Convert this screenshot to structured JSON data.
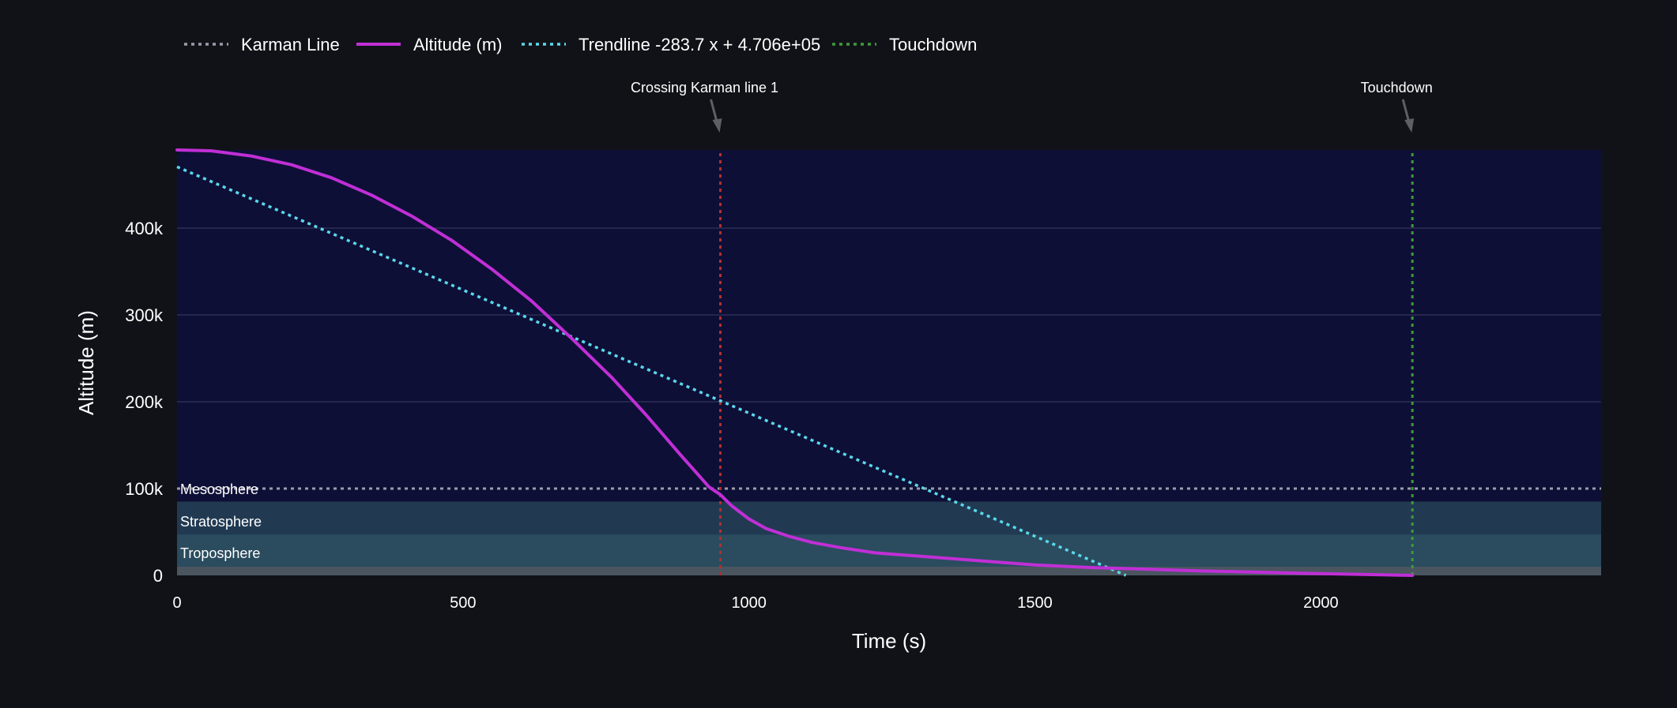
{
  "chart_data": {
    "type": "line",
    "xlabel": "Time (s)",
    "ylabel": "Altitude (m)",
    "xlim": [
      0,
      2490
    ],
    "ylim": [
      0,
      490000
    ],
    "x_ticks": [
      0,
      500,
      1000,
      1500,
      2000
    ],
    "x_tick_labels": [
      "0",
      "500",
      "1000",
      "1500",
      "2000"
    ],
    "y_ticks": [
      0,
      100000,
      200000,
      300000,
      400000
    ],
    "y_tick_labels": [
      "0",
      "100k",
      "200k",
      "300k",
      "400k"
    ],
    "grid": true,
    "legend_position": "top-left",
    "legend": [
      {
        "label": "Karman Line",
        "style": "dotted",
        "color": "#9a9cab"
      },
      {
        "label": "Altitude (m)",
        "style": "solid",
        "color": "#c02fd6"
      },
      {
        "label": "Trendline  -283.7 x + 4.706e+05",
        "style": "dotted",
        "color": "#5ad8ec"
      },
      {
        "label": "Touchdown",
        "style": "dotted",
        "color": "#3e9a3c"
      }
    ],
    "layers": [
      {
        "name": "Troposphere",
        "y_range": [
          0,
          47000
        ],
        "color": "#2a4c5e"
      },
      {
        "name": "Stratosphere",
        "y_range": [
          0,
          85000
        ],
        "color": "#213a52"
      },
      {
        "name": "Mesosphere",
        "y_range": [
          0,
          100000
        ],
        "color": ""
      }
    ],
    "ground_band": {
      "y_range": [
        0,
        10000
      ],
      "color": "#4a5560"
    },
    "series": [
      {
        "name": "Altitude (m)",
        "color": "#c02fd6",
        "x": [
          0,
          60,
          130,
          200,
          270,
          340,
          410,
          480,
          550,
          620,
          690,
          760,
          820,
          880,
          930,
          950,
          970,
          1000,
          1030,
          1070,
          1110,
          1160,
          1220,
          1300,
          1400,
          1500,
          1600,
          1700,
          1800,
          1900,
          2000,
          2100,
          2160
        ],
        "y": [
          490000,
          489000,
          483000,
          473000,
          458000,
          438000,
          414000,
          386000,
          353000,
          316000,
          273000,
          228000,
          185000,
          139000,
          102000,
          93000,
          80000,
          65000,
          54000,
          45000,
          38000,
          32000,
          26000,
          22000,
          17000,
          12000,
          9000,
          7000,
          5000,
          3500,
          2000,
          800,
          0
        ]
      },
      {
        "name": "Trendline  -283.7 x + 4.706e+05",
        "color": "#5ad8ec",
        "slope": -283.7,
        "intercept": 470600,
        "x": [
          0,
          1659
        ],
        "y": [
          470600,
          0
        ]
      }
    ],
    "hlines": [
      {
        "name": "Karman Line",
        "y": 100000,
        "color": "#9a9cab"
      }
    ],
    "vlines": [
      {
        "name": "Crossing Karman line 1",
        "x": 950,
        "color": "#b03030"
      },
      {
        "name": "Touchdown",
        "x": 2160,
        "color": "#3e9a3c"
      }
    ],
    "annotations": [
      {
        "text": "Crossing Karman line 1",
        "x": 950
      },
      {
        "text": "Touchdown",
        "x": 2160
      }
    ]
  },
  "colors": {
    "page_bg": "#111217",
    "plot_bg": "#0e0f36",
    "grid": "#2c2e55",
    "text": "#ffffff",
    "arrow": "#5e5f66"
  }
}
